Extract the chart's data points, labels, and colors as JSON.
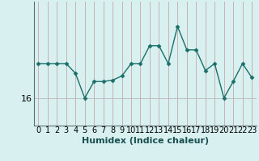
{
  "xlabel": "Humidex (Indice chaleur)",
  "x_values": [
    0,
    1,
    2,
    3,
    4,
    5,
    6,
    7,
    8,
    9,
    10,
    11,
    12,
    13,
    14,
    15,
    16,
    17,
    18,
    19,
    20,
    21,
    22,
    23
  ],
  "y_values": [
    18.5,
    18.5,
    18.5,
    18.5,
    17.8,
    16.0,
    17.2,
    17.2,
    17.3,
    17.6,
    18.5,
    18.5,
    19.8,
    19.8,
    18.5,
    21.2,
    19.5,
    19.5,
    18.0,
    18.5,
    16.0,
    17.2,
    18.5,
    17.5
  ],
  "line_color": "#1a7068",
  "marker": "D",
  "marker_size": 2.5,
  "background_color": "#d8f0f0",
  "grid_vline_color": "#c8a8a8",
  "grid_hline_color": "#b8b8b8",
  "ytick_value": 16,
  "ylim": [
    14.0,
    23.0
  ],
  "xlim": [
    -0.5,
    23.5
  ],
  "tick_fontsize": 7,
  "label_fontsize": 8
}
